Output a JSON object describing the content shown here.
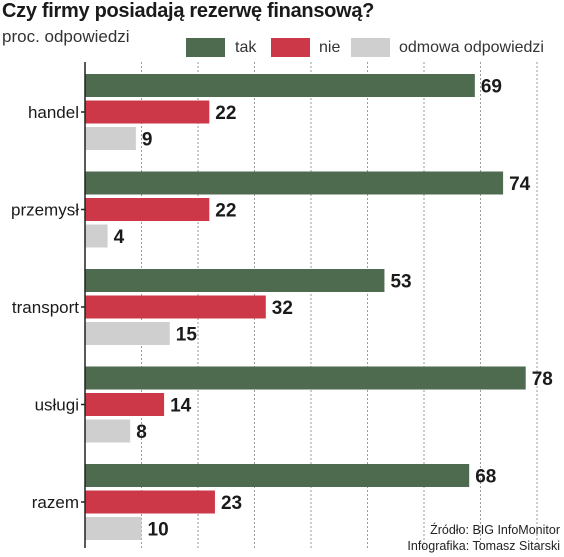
{
  "title": "Czy firmy posiadają rezerwę finansową?",
  "subtitle": "proc. odpowiedzi",
  "colors": {
    "tak": "#4e6b4f",
    "nie": "#cc3848",
    "odmowa": "#cfcfcf",
    "grid": "#9a9a9a",
    "axis": "#222222"
  },
  "legend": [
    {
      "label": "tak",
      "color": "#4e6b4f"
    },
    {
      "label": "nie",
      "color": "#cc3848"
    },
    {
      "label": "odmowa odpowiedzi",
      "color": "#cfcfcf"
    }
  ],
  "source": {
    "line1": "Źródło: BIG InfoMonitor",
    "line2": "Infografika: Tomasz Sitarski"
  },
  "chart_data": {
    "type": "bar",
    "orientation": "horizontal",
    "title": "Czy firmy posiadają rezerwę finansową?",
    "subtitle": "proc. odpowiedzi",
    "categories": [
      "handel",
      "przemysł",
      "transport",
      "usługi",
      "razem"
    ],
    "series": [
      {
        "name": "tak",
        "values": [
          69,
          74,
          53,
          78,
          68
        ]
      },
      {
        "name": "nie",
        "values": [
          22,
          22,
          32,
          14,
          23
        ]
      },
      {
        "name": "odmowa odpowiedzi",
        "values": [
          9,
          4,
          15,
          8,
          10
        ]
      }
    ],
    "xlim": [
      0,
      80
    ],
    "grid": true,
    "legend_position": "top"
  }
}
